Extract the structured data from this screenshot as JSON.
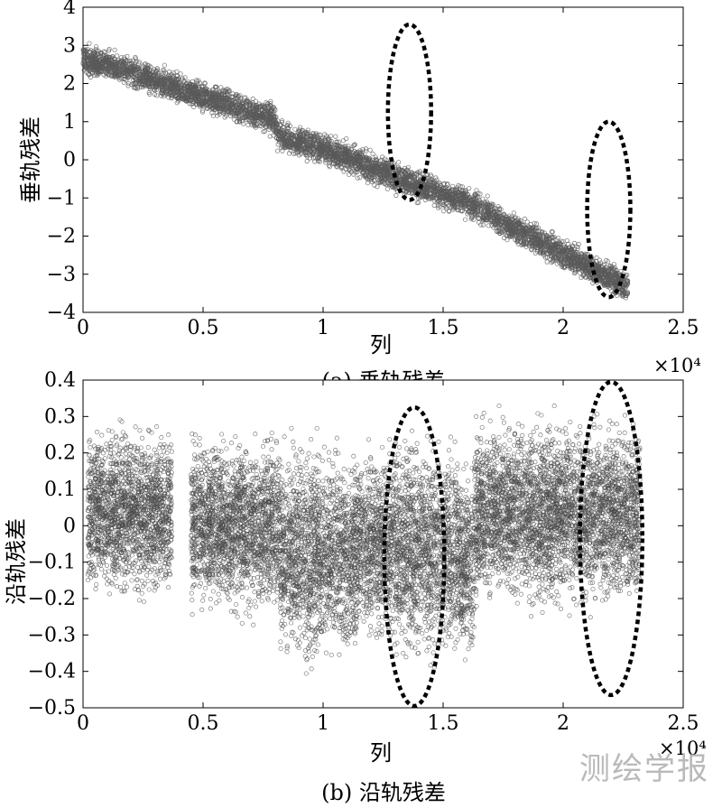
{
  "watermark": "测绘学报",
  "chart_data": [
    {
      "type": "scatter",
      "caption": "(a) 垂轨残差",
      "xlabel": "列",
      "ylabel": "垂轨残差",
      "xlim": [
        0,
        2.5
      ],
      "ylim": [
        -4,
        4
      ],
      "x_exponent": "×10⁴",
      "xticks": [
        "0",
        "0.5",
        "1",
        "1.5",
        "2",
        "2.5"
      ],
      "yticks": [
        "−4",
        "−3",
        "−2",
        "−1",
        "0",
        "1",
        "2",
        "3",
        "4"
      ],
      "xtick_values": [
        0,
        0.5,
        1,
        1.5,
        2,
        2.5
      ],
      "ytick_values": [
        -4,
        -3,
        -2,
        -1,
        0,
        1,
        2,
        3,
        4
      ],
      "marker_color": "#5a5a5a",
      "trend": {
        "x": [
          0,
          0.2,
          0.4,
          0.6,
          0.8,
          0.81,
          1.0,
          1.2,
          1.4,
          1.6,
          1.64,
          1.8,
          2.0,
          2.27
        ],
        "y": [
          2.65,
          2.3,
          1.85,
          1.45,
          1.05,
          0.65,
          0.3,
          -0.2,
          -0.7,
          -1.1,
          -1.25,
          -1.8,
          -2.45,
          -3.35
        ],
        "spread": 0.38
      },
      "segments": [
        0,
        0.81,
        1.64,
        2.29
      ],
      "ellipses": [
        {
          "cx": 1.36,
          "cy": 1.25,
          "rx": 0.09,
          "ry": 2.3
        },
        {
          "cx": 2.19,
          "cy": -1.3,
          "rx": 0.09,
          "ry": 2.3
        }
      ]
    },
    {
      "type": "scatter",
      "caption": "(b) 沿轨残差",
      "xlabel": "列",
      "ylabel": "沿轨残差",
      "xlim": [
        0,
        2.5
      ],
      "ylim": [
        -0.5,
        0.4
      ],
      "x_exponent": "×10⁴",
      "xticks": [
        "0",
        "0.5",
        "1",
        "1.5",
        "2",
        "2.5"
      ],
      "yticks": [
        "−0.5",
        "−0.4",
        "−0.3",
        "−0.2",
        "−0.1",
        "0",
        "0.1",
        "0.2",
        "0.3",
        "0.4"
      ],
      "xtick_values": [
        0,
        0.5,
        1,
        1.5,
        2,
        2.5
      ],
      "ytick_values": [
        -0.5,
        -0.4,
        -0.3,
        -0.2,
        -0.1,
        0,
        0.1,
        0.2,
        0.3,
        0.4
      ],
      "marker_color": "#4a4a4a",
      "blocks": [
        {
          "x": [
            0.02,
            0.37
          ],
          "y": [
            -0.24,
            0.32
          ]
        },
        {
          "x": [
            0.45,
            0.82
          ],
          "y": [
            -0.29,
            0.29
          ]
        },
        {
          "x": [
            0.82,
            1.14
          ],
          "y": [
            -0.43,
            0.28
          ]
        },
        {
          "x": [
            1.14,
            1.27
          ],
          "y": [
            -0.37,
            0.27
          ]
        },
        {
          "x": [
            1.27,
            1.56
          ],
          "y": [
            -0.43,
            0.31
          ]
        },
        {
          "x": [
            1.56,
            1.63
          ],
          "y": [
            -0.43,
            0.22
          ]
        },
        {
          "x": [
            1.63,
            2.32
          ],
          "y": [
            -0.27,
            0.34
          ]
        }
      ],
      "ellipses": [
        {
          "cx": 1.38,
          "cy": -0.085,
          "rx": 0.125,
          "ry": 0.41
        },
        {
          "cx": 2.2,
          "cy": -0.035,
          "rx": 0.13,
          "ry": 0.43
        }
      ]
    }
  ]
}
